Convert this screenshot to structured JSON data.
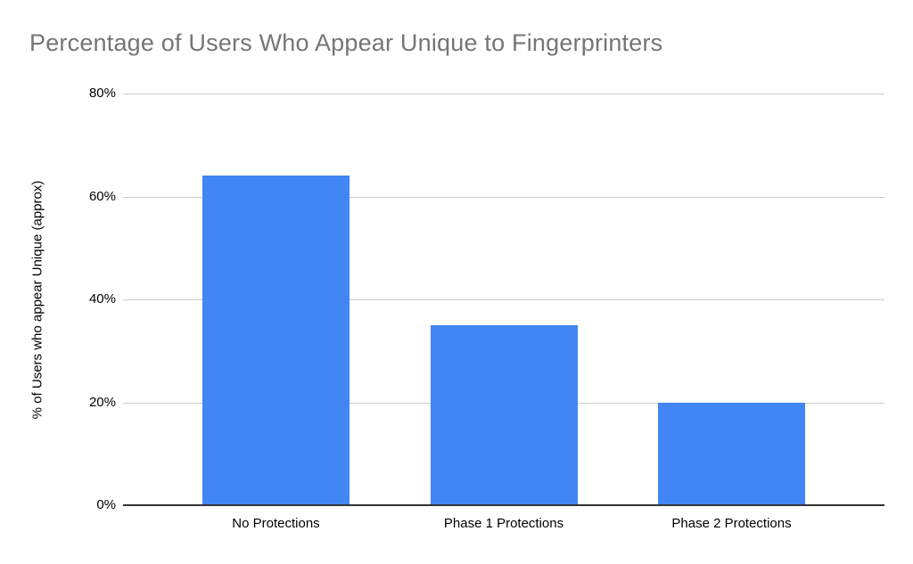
{
  "title": "Percentage of Users Who Appear Unique to Fingerprinters",
  "colors": {
    "bar": "#4285F4",
    "gridline": "#cccccc",
    "axis_line": "#333333",
    "title_text": "#757575",
    "tick_text": "#000000",
    "background": "#ffffff"
  },
  "chart_data": {
    "type": "bar",
    "title": "Percentage of Users Who Appear Unique to Fingerprinters",
    "categories": [
      "No Protections",
      "Phase 1 Protections",
      "Phase 2 Protections"
    ],
    "values": [
      64,
      35,
      20
    ],
    "xlabel": "",
    "ylabel": "% of Users who appear Unique (approx)",
    "ylim": [
      0,
      80
    ],
    "yticks": [
      0,
      20,
      40,
      60,
      80
    ],
    "ytick_labels": [
      "0%",
      "20%",
      "40%",
      "60%",
      "80%"
    ],
    "grid": true,
    "legend_position": "none"
  }
}
